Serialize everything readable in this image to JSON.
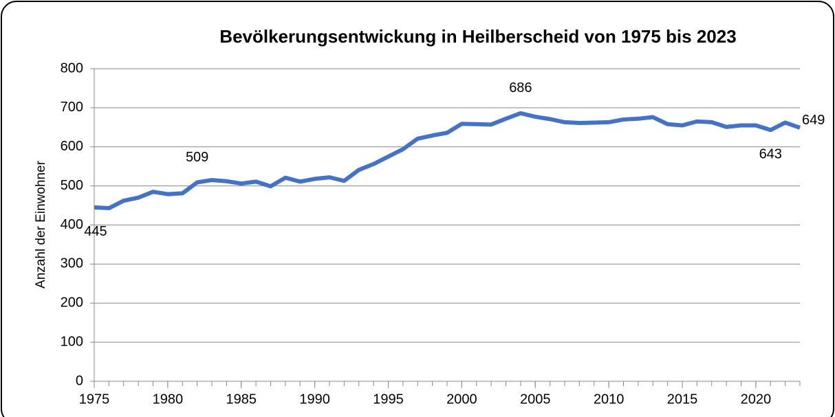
{
  "chart_data": {
    "type": "line",
    "title": "Bevölkerungsentwickung in Heilberscheid von 1975 bis 2023",
    "y_label": "Anzahl der Einwohner",
    "x": [
      1975,
      1976,
      1977,
      1978,
      1979,
      1980,
      1981,
      1982,
      1983,
      1984,
      1985,
      1986,
      1987,
      1988,
      1989,
      1990,
      1991,
      1992,
      1993,
      1994,
      1995,
      1996,
      1997,
      1998,
      1999,
      2000,
      2001,
      2002,
      2003,
      2004,
      2005,
      2006,
      2007,
      2008,
      2009,
      2010,
      2011,
      2012,
      2013,
      2014,
      2015,
      2016,
      2017,
      2018,
      2019,
      2020,
      2021,
      2022,
      2023
    ],
    "values": [
      445,
      443,
      462,
      470,
      485,
      479,
      481,
      509,
      515,
      512,
      506,
      511,
      499,
      521,
      511,
      518,
      522,
      513,
      541,
      556,
      575,
      594,
      621,
      629,
      636,
      659,
      658,
      657,
      672,
      686,
      677,
      671,
      663,
      661,
      662,
      663,
      670,
      672,
      676,
      658,
      655,
      665,
      663,
      651,
      655,
      655,
      643,
      662,
      649
    ],
    "value_labels": [
      "445",
      null,
      null,
      null,
      null,
      null,
      null,
      "509",
      null,
      null,
      null,
      null,
      null,
      null,
      null,
      null,
      null,
      null,
      null,
      null,
      null,
      null,
      null,
      null,
      null,
      null,
      null,
      null,
      null,
      "686",
      null,
      null,
      null,
      null,
      null,
      null,
      null,
      null,
      null,
      null,
      null,
      null,
      null,
      null,
      null,
      null,
      "643",
      null,
      "649"
    ],
    "color": "#4472c4",
    "xlim": [
      1975,
      2023
    ],
    "xticks": [
      1975,
      1980,
      1985,
      1990,
      1995,
      2000,
      2005,
      2010,
      2015,
      2020
    ],
    "ylim": [
      0,
      800
    ],
    "yticks": [
      0,
      100,
      200,
      300,
      400,
      500,
      600,
      700,
      800
    ],
    "grid": true
  }
}
